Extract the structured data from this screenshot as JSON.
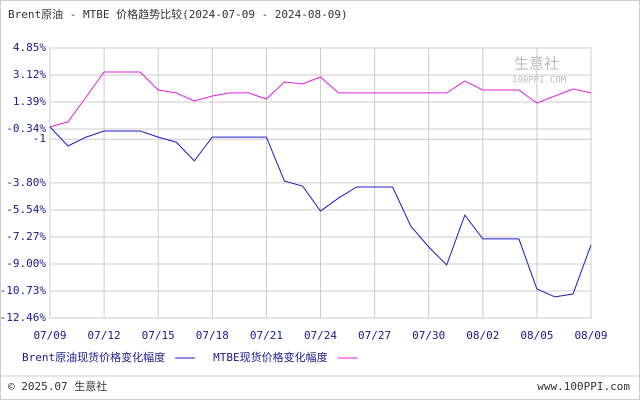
{
  "chart_data": {
    "type": "line",
    "title": "Brent原油 - MTBE 价格趋势比较(2024-07-09 - 2024-08-09)",
    "categories": [
      "07/09",
      null,
      null,
      "07/12",
      null,
      null,
      "07/15",
      null,
      null,
      "07/18",
      null,
      null,
      "07/21",
      null,
      null,
      "07/24",
      null,
      null,
      "07/27",
      null,
      null,
      "07/30",
      null,
      null,
      "08/02",
      null,
      null,
      "08/05",
      null,
      null,
      "08/09"
    ],
    "series": [
      {
        "name": "Brent原油现货价格变化幅度",
        "color": "#1c1cc8",
        "values": [
          -0.21,
          -1.43,
          -0.86,
          -0.47,
          -0.47,
          -0.47,
          -0.86,
          -1.18,
          -2.39,
          -0.86,
          -0.86,
          -0.86,
          -0.86,
          -3.68,
          -4.0,
          -5.6,
          -4.77,
          -4.06,
          -4.06,
          -4.06,
          -6.56,
          -7.91,
          -9.06,
          -5.86,
          -7.39,
          -7.39,
          -7.39,
          -10.6,
          -11.11,
          -10.92,
          -7.78
        ]
      },
      {
        "name": "MTBE现货价格变化幅度",
        "color": "#e020e0",
        "values": [
          -0.21,
          0.11,
          1.71,
          3.31,
          3.31,
          3.31,
          2.16,
          1.97,
          1.45,
          1.77,
          1.97,
          1.97,
          1.58,
          2.67,
          2.54,
          2.99,
          1.97,
          1.97,
          1.97,
          1.97,
          1.97,
          1.97,
          1.97,
          2.73,
          2.16,
          2.16,
          2.16,
          1.32,
          1.77,
          2.22,
          1.97
        ]
      }
    ],
    "ylim": [
      -12.46,
      4.85
    ],
    "yticks": [
      {
        "value": 4.85,
        "label": "4.85%"
      },
      {
        "value": 3.12,
        "label": "3.12%"
      },
      {
        "value": 1.39,
        "label": "1.39%"
      },
      {
        "value": -0.34,
        "label": "-0.34%"
      },
      -1,
      {
        "value": -3.8,
        "label": "-3.80%"
      },
      {
        "value": -5.54,
        "label": "-5.54%"
      },
      {
        "value": -7.27,
        "label": "-7.27%"
      },
      {
        "value": -9.0,
        "label": "-9.00%"
      },
      {
        "value": -10.73,
        "label": "-10.73%"
      },
      {
        "value": -12.46,
        "label": "-12.46%"
      }
    ],
    "grid": true,
    "watermark": [
      "生意社",
      "100PPI.COM"
    ],
    "footer_left": "© 2025.07 生意社",
    "footer_right": "www.100PPI.com"
  }
}
